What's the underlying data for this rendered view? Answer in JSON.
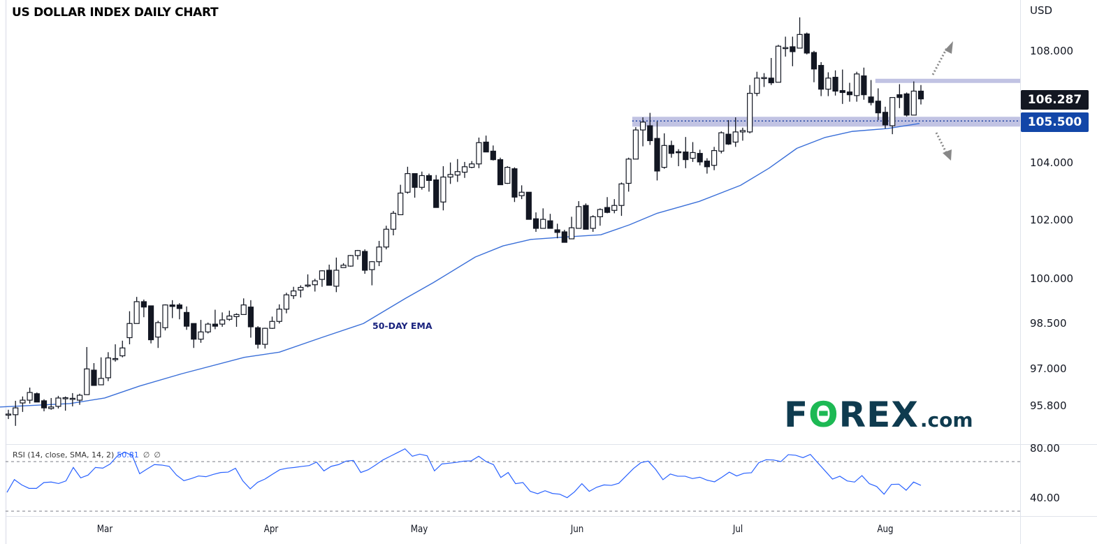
{
  "title": "US DOLLAR INDEX DAILY CHART",
  "currency_label": "USD",
  "logo": {
    "text_main": "FOREX",
    "text_suffix": ".com"
  },
  "colors": {
    "up_body": "#ffffff",
    "down_body": "#131722",
    "ema": "#3a6fd8",
    "rsi": "#2962ff",
    "band": "#c1c3e3",
    "last_price_box": "#131722",
    "level_box": "#1246a8",
    "arrow": "#888888"
  },
  "price_axis": {
    "scale": "log",
    "ticks": [
      "108.000",
      "104.000",
      "102.000",
      "100.000",
      "98.500",
      "97.000",
      "95.800"
    ],
    "tick_values": [
      108,
      104,
      102,
      100,
      98.5,
      97,
      95.8
    ]
  },
  "last_price": "106.287",
  "level_label": "105.500",
  "ema_label": "50-DAY EMA",
  "rsi": {
    "legend": "RSI (14, close, SMA, 14, 2)",
    "value": "50.81",
    "extra1": "∅",
    "extra2": "∅",
    "ticks": [
      "80.00",
      "40.00"
    ],
    "tick_values": [
      80,
      40
    ],
    "bands": [
      70,
      30
    ],
    "values": [
      45.2,
      55.5,
      51.2,
      48.4,
      48.4,
      53.1,
      53.5,
      52.3,
      54.4,
      65.3,
      56.9,
      59.1,
      65.3,
      64.7,
      68.1,
      74.7,
      77.7,
      74.7,
      60.2,
      64.0,
      67.6,
      67.2,
      66.2,
      59.1,
      54.6,
      56.3,
      58.4,
      57.8,
      59.7,
      61.2,
      61.5,
      64.6,
      54.4,
      48.0,
      53.3,
      55.9,
      59.7,
      63.4,
      64.7,
      65.3,
      66.1,
      66.8,
      69.6,
      62.5,
      66.2,
      67.6,
      70.4,
      70.9,
      61.2,
      63.4,
      67.2,
      71.3,
      74.3,
      77.3,
      80.3,
      74.3,
      76.0,
      74.7,
      62.5,
      68.1,
      68.7,
      69.4,
      70.4,
      70.6,
      74.3,
      70.0,
      67.6,
      57.2,
      61.2,
      52.2,
      53.1,
      46.0,
      44.1,
      46.5,
      44.3,
      43.7,
      40.9,
      45.6,
      52.2,
      46.0,
      49.3,
      51.2,
      50.8,
      52.5,
      58.4,
      64.4,
      69.1,
      70.4,
      63.8,
      55.4,
      60.0,
      58.2,
      58.2,
      56.3,
      57.4,
      55.0,
      53.7,
      57.4,
      61.5,
      58.4,
      60.6,
      61.0,
      69.1,
      71.5,
      71.3,
      70.0,
      75.6,
      75.1,
      73.2,
      75.8,
      69.1,
      62.5,
      55.9,
      58.2,
      54.4,
      53.5,
      58.7,
      52.2,
      49.9,
      43.7,
      51.6,
      51.8,
      46.9,
      53.5,
      50.81
    ]
  },
  "chart_data": {
    "type": "candlestick",
    "title": "US DOLLAR INDEX DAILY CHART",
    "y_unit": "USD",
    "x_ticks": [
      {
        "label": "Mar",
        "day": 14.5
      },
      {
        "label": "Apr",
        "day": 37.9
      },
      {
        "label": "May",
        "day": 58.6
      },
      {
        "label": "Jun",
        "day": 80.8
      },
      {
        "label": "Jul",
        "day": 103.3
      },
      {
        "label": "Aug",
        "day": 124.0
      }
    ],
    "ohlc": [
      [
        95.55,
        95.69,
        95.39,
        95.55
      ],
      [
        95.53,
        95.98,
        95.17,
        95.75
      ],
      [
        95.91,
        96.12,
        95.62,
        96.0
      ],
      [
        96.0,
        96.41,
        95.89,
        96.25
      ],
      [
        96.21,
        96.25,
        95.94,
        95.94
      ],
      [
        95.98,
        96.03,
        95.64,
        95.75
      ],
      [
        95.73,
        96.07,
        95.69,
        95.78
      ],
      [
        95.8,
        96.14,
        95.73,
        96.07
      ],
      [
        96.07,
        96.12,
        95.66,
        96.08
      ],
      [
        96.05,
        96.23,
        95.8,
        96.06
      ],
      [
        96.0,
        96.21,
        95.85,
        96.16
      ],
      [
        96.18,
        97.74,
        96.18,
        97.02
      ],
      [
        96.98,
        97.21,
        96.48,
        96.48
      ],
      [
        96.5,
        97.4,
        96.5,
        96.71
      ],
      [
        96.73,
        97.57,
        96.62,
        97.38
      ],
      [
        97.33,
        97.83,
        97.26,
        97.36
      ],
      [
        97.45,
        97.95,
        97.4,
        97.71
      ],
      [
        98.05,
        98.93,
        97.83,
        98.52
      ],
      [
        98.52,
        99.41,
        98.52,
        99.25
      ],
      [
        99.25,
        99.32,
        98.73,
        99.07
      ],
      [
        99.11,
        99.11,
        97.86,
        97.98
      ],
      [
        98.07,
        98.61,
        97.71,
        98.55
      ],
      [
        98.38,
        99.16,
        98.29,
        99.14
      ],
      [
        99.14,
        99.3,
        98.7,
        99.09
      ],
      [
        99.14,
        99.2,
        98.66,
        99.02
      ],
      [
        98.89,
        99.09,
        98.31,
        98.43
      ],
      [
        98.52,
        98.52,
        97.71,
        98.0
      ],
      [
        98.0,
        98.64,
        97.88,
        98.24
      ],
      [
        98.24,
        98.55,
        98.19,
        98.5
      ],
      [
        98.5,
        98.98,
        98.33,
        98.43
      ],
      [
        98.5,
        98.89,
        98.41,
        98.64
      ],
      [
        98.66,
        98.95,
        98.61,
        98.77
      ],
      [
        98.75,
        98.86,
        98.41,
        98.82
      ],
      [
        98.82,
        99.36,
        98.82,
        99.14
      ],
      [
        99.07,
        99.3,
        98.05,
        98.41
      ],
      [
        98.38,
        98.43,
        97.69,
        97.83
      ],
      [
        97.83,
        98.38,
        97.69,
        98.36
      ],
      [
        98.36,
        98.75,
        98.34,
        98.59
      ],
      [
        98.59,
        99.16,
        98.52,
        99.0
      ],
      [
        99.0,
        99.55,
        98.86,
        99.48
      ],
      [
        99.45,
        99.75,
        99.34,
        99.61
      ],
      [
        99.64,
        99.8,
        99.39,
        99.73
      ],
      [
        99.8,
        100.17,
        99.73,
        99.81
      ],
      [
        99.82,
        100.02,
        99.59,
        99.95
      ],
      [
        100.0,
        100.31,
        99.75,
        100.29
      ],
      [
        100.31,
        100.5,
        99.8,
        99.8
      ],
      [
        99.77,
        100.74,
        99.57,
        100.31
      ],
      [
        100.4,
        100.55,
        100.4,
        100.48
      ],
      [
        100.45,
        100.83,
        100.43,
        100.81
      ],
      [
        100.81,
        101.0,
        100.67,
        100.98
      ],
      [
        100.95,
        101.02,
        100.19,
        100.31
      ],
      [
        100.33,
        100.62,
        99.8,
        100.6
      ],
      [
        100.6,
        101.31,
        100.45,
        101.1
      ],
      [
        101.1,
        101.83,
        101.02,
        101.71
      ],
      [
        101.71,
        102.34,
        101.5,
        102.26
      ],
      [
        102.21,
        103.25,
        102.21,
        102.96
      ],
      [
        102.99,
        103.88,
        102.94,
        103.64
      ],
      [
        103.64,
        103.64,
        102.8,
        103.16
      ],
      [
        103.16,
        103.71,
        103.08,
        103.57
      ],
      [
        103.57,
        103.64,
        103.01,
        103.4
      ],
      [
        103.42,
        103.59,
        102.46,
        102.46
      ],
      [
        102.65,
        103.9,
        102.36,
        103.52
      ],
      [
        103.52,
        104.03,
        103.28,
        103.61
      ],
      [
        103.59,
        104.15,
        103.35,
        103.71
      ],
      [
        103.69,
        104.05,
        103.49,
        103.88
      ],
      [
        103.86,
        104.08,
        103.83,
        103.98
      ],
      [
        103.98,
        104.91,
        103.83,
        104.73
      ],
      [
        104.75,
        104.98,
        104.4,
        104.4
      ],
      [
        104.43,
        104.63,
        104.1,
        104.13
      ],
      [
        104.13,
        104.2,
        103.25,
        103.25
      ],
      [
        103.3,
        103.9,
        103.28,
        103.86
      ],
      [
        103.81,
        103.86,
        102.65,
        102.82
      ],
      [
        102.87,
        103.23,
        102.75,
        102.99
      ],
      [
        102.99,
        102.99,
        102.05,
        102.05
      ],
      [
        102.07,
        102.29,
        101.62,
        101.74
      ],
      [
        101.74,
        102.43,
        101.74,
        102.05
      ],
      [
        102.0,
        102.24,
        101.74,
        101.74
      ],
      [
        101.69,
        101.9,
        101.4,
        101.6
      ],
      [
        101.62,
        101.69,
        101.26,
        101.26
      ],
      [
        101.38,
        102.14,
        101.38,
        101.76
      ],
      [
        101.74,
        102.68,
        101.74,
        102.49
      ],
      [
        102.53,
        102.6,
        101.71,
        101.71
      ],
      [
        101.74,
        102.19,
        101.62,
        102.14
      ],
      [
        102.14,
        102.43,
        101.83,
        102.39
      ],
      [
        102.46,
        102.82,
        102.26,
        102.29
      ],
      [
        102.36,
        102.75,
        102.26,
        102.53
      ],
      [
        102.53,
        103.33,
        102.17,
        103.28
      ],
      [
        103.3,
        104.2,
        103.01,
        104.15
      ],
      [
        104.15,
        105.28,
        104.15,
        105.18
      ],
      [
        105.18,
        105.63,
        104.6,
        105.46
      ],
      [
        105.33,
        105.79,
        104.65,
        104.8
      ],
      [
        104.88,
        105.48,
        103.4,
        103.73
      ],
      [
        103.86,
        105.06,
        103.81,
        104.63
      ],
      [
        104.63,
        104.8,
        104.2,
        104.35
      ],
      [
        104.41,
        104.5,
        103.9,
        104.4
      ],
      [
        104.4,
        104.93,
        103.83,
        104.13
      ],
      [
        104.18,
        104.75,
        104.05,
        104.38
      ],
      [
        104.35,
        104.48,
        103.93,
        104.05
      ],
      [
        104.08,
        104.18,
        103.64,
        103.88
      ],
      [
        103.93,
        104.58,
        103.76,
        104.45
      ],
      [
        104.43,
        105.13,
        104.35,
        105.08
      ],
      [
        105.03,
        105.53,
        104.65,
        104.68
      ],
      [
        104.75,
        105.63,
        104.58,
        105.11
      ],
      [
        105.11,
        105.26,
        104.8,
        105.16
      ],
      [
        105.11,
        106.79,
        105.06,
        106.49
      ],
      [
        106.49,
        107.27,
        106.39,
        107.04
      ],
      [
        107.04,
        107.22,
        106.72,
        107.06
      ],
      [
        107.04,
        107.77,
        106.79,
        106.87
      ],
      [
        106.89,
        108.25,
        106.89,
        108.2
      ],
      [
        108.13,
        108.55,
        107.82,
        108.15
      ],
      [
        108.18,
        108.55,
        107.47,
        108.0
      ],
      [
        108.13,
        109.26,
        108.13,
        108.63
      ],
      [
        108.65,
        108.7,
        107.9,
        107.95
      ],
      [
        107.97,
        108.03,
        106.89,
        107.37
      ],
      [
        107.5,
        107.62,
        106.39,
        106.64
      ],
      [
        106.64,
        107.25,
        106.39,
        107.04
      ],
      [
        107.07,
        107.32,
        106.41,
        106.57
      ],
      [
        106.59,
        107.35,
        106.11,
        106.52
      ],
      [
        106.54,
        106.87,
        106.19,
        106.44
      ],
      [
        106.41,
        107.27,
        106.19,
        107.19
      ],
      [
        107.12,
        107.42,
        106.26,
        106.44
      ],
      [
        106.36,
        106.97,
        106.06,
        106.16
      ],
      [
        106.21,
        106.67,
        105.53,
        105.79
      ],
      [
        105.81,
        106.01,
        105.23,
        105.36
      ],
      [
        105.33,
        106.34,
        105.03,
        106.34
      ],
      [
        106.44,
        106.82,
        105.96,
        106.34
      ],
      [
        106.47,
        106.52,
        105.66,
        105.71
      ],
      [
        105.71,
        106.92,
        105.71,
        106.57
      ],
      [
        106.57,
        106.79,
        106.09,
        106.29
      ]
    ],
    "ema50": [
      [
        1,
        95.78
      ],
      [
        9.6,
        95.89
      ],
      [
        14.5,
        96.07
      ],
      [
        19.4,
        96.46
      ],
      [
        25.3,
        96.86
      ],
      [
        34.1,
        97.4
      ],
      [
        39,
        97.57
      ],
      [
        44.9,
        98.05
      ],
      [
        50.8,
        98.52
      ],
      [
        56.7,
        99.36
      ],
      [
        60.6,
        99.89
      ],
      [
        66.5,
        100.76
      ],
      [
        70.4,
        101.14
      ],
      [
        74.3,
        101.36
      ],
      [
        78.3,
        101.43
      ],
      [
        84.1,
        101.52
      ],
      [
        88.1,
        101.86
      ],
      [
        92,
        102.26
      ],
      [
        97.9,
        102.67
      ],
      [
        103.7,
        103.23
      ],
      [
        107.7,
        103.83
      ],
      [
        111.6,
        104.53
      ],
      [
        115.5,
        104.91
      ],
      [
        119.4,
        105.13
      ],
      [
        124.3,
        105.23
      ],
      [
        128.8,
        105.41
      ]
    ],
    "resistance": {
      "price": 106.94,
      "from_day": 123
    },
    "support": {
      "price": 105.5,
      "zone_low": 105.3,
      "zone_high": 105.65,
      "from_day": 89
    },
    "arrows": [
      "up",
      "down"
    ]
  }
}
